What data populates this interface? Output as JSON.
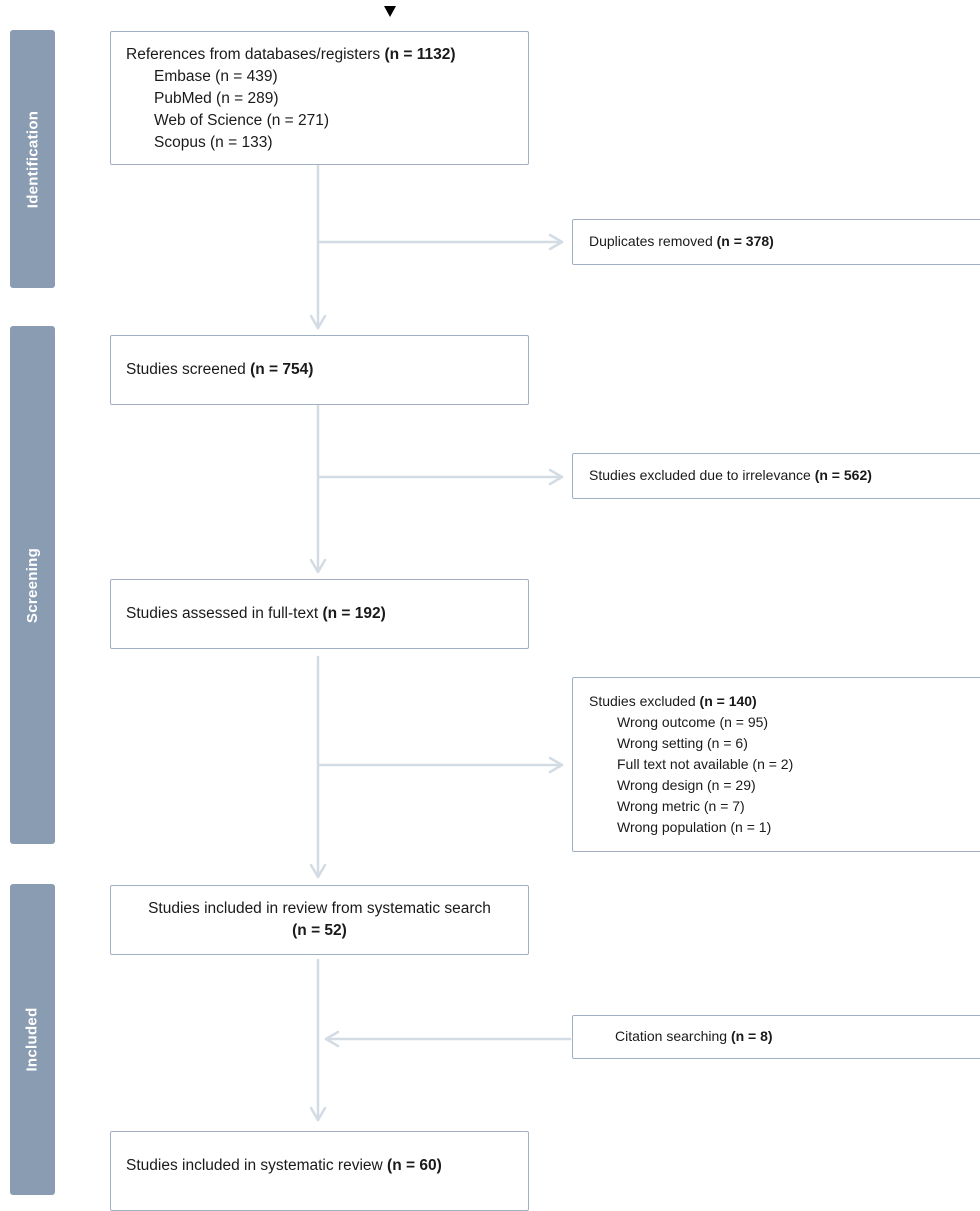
{
  "phases": {
    "identification": "Identification",
    "screening": "Screening",
    "included": "Included"
  },
  "identification_box": {
    "title": "References from databases/registers ",
    "title_count": "(n = 1132)",
    "sources": [
      "Embase (n = 439)",
      "PubMed (n = 289)",
      "Web of Science (n = 271)",
      "Scopus (n = 133)"
    ]
  },
  "duplicates_box": {
    "label": "Duplicates removed ",
    "count": "(n = 378)"
  },
  "screened_box": {
    "label": "Studies screened ",
    "count": "(n = 754)"
  },
  "irrelevant_box": {
    "label": "Studies excluded due to irrelevance ",
    "count": "(n = 562)"
  },
  "fulltext_box": {
    "label": "Studies assessed in full-text ",
    "count": "(n = 192)"
  },
  "excluded_box": {
    "label": "Studies excluded ",
    "count": "(n = 140)",
    "reasons": [
      "Wrong outcome (n = 95)",
      "Wrong setting (n = 6)",
      "Full text not available (n = 2)",
      "Wrong design (n = 29)",
      "Wrong metric  (n = 7)",
      "Wrong population  (n = 1)"
    ]
  },
  "systematic_box": {
    "label": "Studies included in review from systematic search",
    "count": "(n = 52)"
  },
  "citation_box": {
    "label": "Citation searching ",
    "count": "(n = 8)"
  },
  "final_box": {
    "label": "Studies included in systematic review ",
    "count": "(n = 60)"
  },
  "colors": {
    "phase_bar": "#8a9cb2",
    "box_border": "#9fb0c4",
    "arrow": "#d3dbe5"
  }
}
